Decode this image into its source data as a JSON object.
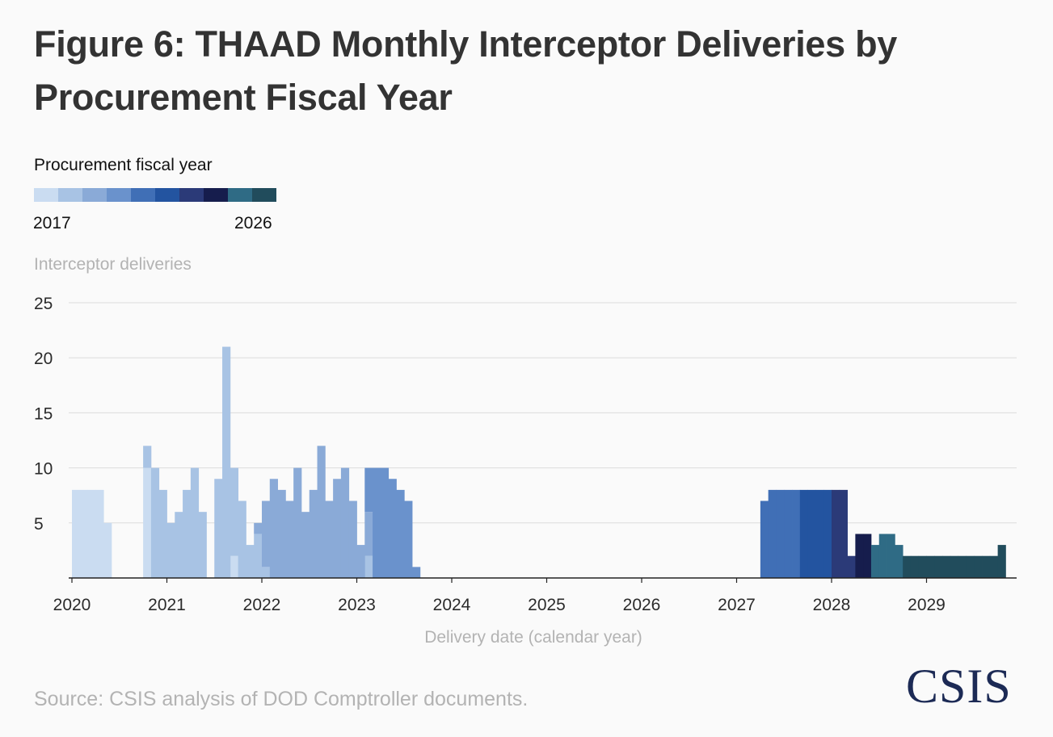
{
  "title": "Figure 6: THAAD Monthly Interceptor Deliveries by Procurement Fiscal Year",
  "legend": {
    "title": "Procurement fiscal year",
    "min_label": "2017",
    "max_label": "2026",
    "colors": [
      "#cadcf1",
      "#a8c3e4",
      "#8aaad7",
      "#6a92cc",
      "#406fb6",
      "#2354a0",
      "#2b3a78",
      "#161d4d",
      "#2f6b85",
      "#214c5c"
    ]
  },
  "source": "Source: CSIS analysis of DOD Comptroller documents.",
  "logo_text": "CSIS",
  "chart_data": {
    "type": "bar",
    "stacked": true,
    "ylabel": "Interceptor deliveries",
    "xlabel": "Delivery date (calendar year)",
    "ylim": [
      0,
      25
    ],
    "yticks": [
      5,
      10,
      15,
      20,
      25
    ],
    "xlim": [
      "2019-12",
      "2029-12"
    ],
    "xticks": [
      "2020",
      "2021",
      "2022",
      "2023",
      "2024",
      "2025",
      "2026",
      "2027",
      "2028",
      "2029"
    ],
    "grid": true,
    "series": [
      {
        "name": "2017",
        "color": "#cadcf1",
        "points": [
          [
            "2020-01",
            8
          ],
          [
            "2020-02",
            8
          ],
          [
            "2020-03",
            8
          ],
          [
            "2020-04",
            8
          ],
          [
            "2020-05",
            5
          ],
          [
            "2020-10",
            10
          ],
          [
            "2021-09",
            2
          ]
        ]
      },
      {
        "name": "2018",
        "color": "#a8c3e4",
        "points": [
          [
            "2020-10",
            2
          ],
          [
            "2020-11",
            10
          ],
          [
            "2020-12",
            8
          ],
          [
            "2021-01",
            5
          ],
          [
            "2021-02",
            6
          ],
          [
            "2021-03",
            8
          ],
          [
            "2021-04",
            10
          ],
          [
            "2021-05",
            6
          ],
          [
            "2021-07",
            9
          ],
          [
            "2021-08",
            21
          ],
          [
            "2021-09",
            8
          ],
          [
            "2021-10",
            7
          ],
          [
            "2021-11",
            3
          ],
          [
            "2021-12",
            4
          ],
          [
            "2022-01",
            1
          ],
          [
            "2023-02",
            2
          ]
        ]
      },
      {
        "name": "2019",
        "color": "#8aaad7",
        "points": [
          [
            "2021-12",
            1
          ],
          [
            "2022-01",
            6
          ],
          [
            "2022-02",
            9
          ],
          [
            "2022-03",
            8
          ],
          [
            "2022-04",
            7
          ],
          [
            "2022-05",
            10
          ],
          [
            "2022-06",
            6
          ],
          [
            "2022-07",
            8
          ],
          [
            "2022-08",
            12
          ],
          [
            "2022-09",
            7
          ],
          [
            "2022-10",
            9
          ],
          [
            "2022-11",
            10
          ],
          [
            "2022-12",
            7
          ],
          [
            "2023-01",
            3
          ],
          [
            "2023-02",
            4
          ]
        ]
      },
      {
        "name": "2020",
        "color": "#6a92cc",
        "points": [
          [
            "2023-02",
            4
          ],
          [
            "2023-03",
            10
          ],
          [
            "2023-04",
            10
          ],
          [
            "2023-05",
            9
          ],
          [
            "2023-06",
            8
          ],
          [
            "2023-07",
            7
          ],
          [
            "2023-08",
            1
          ]
        ]
      },
      {
        "name": "2021",
        "color": "#406fb6",
        "points": [
          [
            "2027-04",
            7
          ],
          [
            "2027-05",
            8
          ],
          [
            "2027-06",
            8
          ],
          [
            "2027-07",
            8
          ],
          [
            "2027-08",
            8
          ]
        ]
      },
      {
        "name": "2022",
        "color": "#2354a0",
        "points": [
          [
            "2027-09",
            8
          ],
          [
            "2027-10",
            8
          ],
          [
            "2027-11",
            8
          ],
          [
            "2027-12",
            8
          ]
        ]
      },
      {
        "name": "2023",
        "color": "#2b3a78",
        "points": [
          [
            "2028-01",
            8
          ],
          [
            "2028-02",
            8
          ],
          [
            "2028-03",
            2
          ]
        ]
      },
      {
        "name": "2024",
        "color": "#161d4d",
        "points": [
          [
            "2028-04",
            4
          ],
          [
            "2028-05",
            4
          ]
        ]
      },
      {
        "name": "2025",
        "color": "#2f6b85",
        "points": [
          [
            "2028-06",
            3
          ],
          [
            "2028-07",
            4
          ],
          [
            "2028-08",
            4
          ],
          [
            "2028-09",
            3
          ]
        ]
      },
      {
        "name": "2026",
        "color": "#214c5c",
        "points": [
          [
            "2028-10",
            2
          ],
          [
            "2028-11",
            2
          ],
          [
            "2028-12",
            2
          ],
          [
            "2029-01",
            2
          ],
          [
            "2029-02",
            2
          ],
          [
            "2029-03",
            2
          ],
          [
            "2029-04",
            2
          ],
          [
            "2029-05",
            2
          ],
          [
            "2029-06",
            2
          ],
          [
            "2029-07",
            2
          ],
          [
            "2029-08",
            2
          ],
          [
            "2029-09",
            2
          ],
          [
            "2029-10",
            3
          ]
        ]
      }
    ]
  }
}
